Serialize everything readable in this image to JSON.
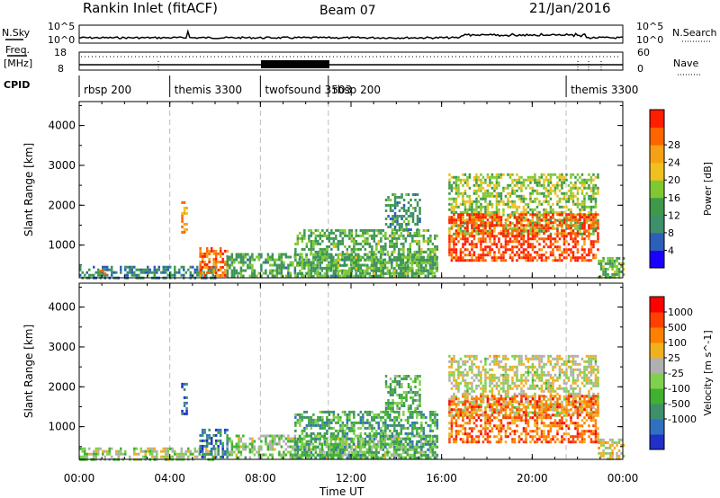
{
  "header": {
    "station": "Rankin Inlet (fitACF)",
    "beam": "Beam 07",
    "date": "21/Jan/2016"
  },
  "top_panel": {
    "left_label": "N.Sky",
    "right_label": "N.Search",
    "y_top": "10^5",
    "y_bottom": "10^0"
  },
  "freq_panel": {
    "left_label_1": "Freq.",
    "left_label_2": "[MHz]",
    "left_tick_top": "18",
    "left_tick_bottom": "8",
    "right_label": "Nave",
    "right_tick_top": "60",
    "right_tick_bottom": "0"
  },
  "cpid": {
    "label": "CPID",
    "segments": [
      {
        "name": "rbsp 200",
        "start_h": 0.0
      },
      {
        "name": "themis 3300",
        "start_h": 4.0
      },
      {
        "name": "twofsound 3503",
        "start_h": 8.0
      },
      {
        "name": "rbsp 200",
        "start_h": 11.0
      },
      {
        "name": "themis 3300",
        "start_h": 21.5
      }
    ]
  },
  "x_axis": {
    "title": "Time UT",
    "ticks": [
      "00:00",
      "04:00",
      "08:00",
      "12:00",
      "16:00",
      "20:00",
      "00:00"
    ],
    "range_hours": [
      0,
      24
    ]
  },
  "chart_data": [
    {
      "type": "heatmap",
      "ylabel": "Slant Range [km]",
      "yticks": [
        "1000",
        "2000",
        "3000",
        "4000"
      ],
      "ylim": [
        180,
        4600
      ],
      "colorbar_label": "Power [dB]",
      "colorbar_ticks": [
        "4",
        "8",
        "12",
        "16",
        "20",
        "24",
        "28"
      ],
      "colorbar_colors": [
        "#1a00ff",
        "#2c5fb8",
        "#3e8f6a",
        "#3e9a4a",
        "#7fc832",
        "#f0c020",
        "#f5a015",
        "#ff6400",
        "#ff1e00"
      ],
      "regions": [
        {
          "t0": 0.0,
          "t1": 6.0,
          "r0": 200,
          "r1": 480,
          "level": 0.25
        },
        {
          "t0": 0.9,
          "t1": 1.1,
          "r0": 260,
          "r1": 380,
          "level": 0.95
        },
        {
          "t0": 4.5,
          "t1": 4.75,
          "r0": 1300,
          "r1": 2100,
          "level": 0.75
        },
        {
          "t0": 5.3,
          "t1": 6.5,
          "r0": 250,
          "r1": 950,
          "level": 0.85
        },
        {
          "t0": 6.5,
          "t1": 15.8,
          "r0": 200,
          "r1": 800,
          "level": 0.35
        },
        {
          "t0": 9.5,
          "t1": 15.8,
          "r0": 200,
          "r1": 1400,
          "level": 0.4
        },
        {
          "t0": 13.5,
          "t1": 15.0,
          "r0": 1400,
          "r1": 2300,
          "level": 0.3
        },
        {
          "t0": 16.3,
          "t1": 22.9,
          "r0": 1300,
          "r1": 2800,
          "level": 0.5
        },
        {
          "t0": 16.3,
          "t1": 22.9,
          "r0": 600,
          "r1": 1800,
          "level": 0.95
        },
        {
          "t0": 22.9,
          "t1": 24.0,
          "r0": 200,
          "r1": 700,
          "level": 0.4
        }
      ]
    },
    {
      "type": "heatmap",
      "ylabel": "Slant Range [km]",
      "yticks": [
        "1000",
        "2000",
        "3000",
        "4000"
      ],
      "ylim": [
        180,
        4600
      ],
      "colorbar_label": "Velocity [m s^-1]",
      "colorbar_ticks": [
        "1000",
        "500",
        "100",
        "25",
        "-25",
        "-100",
        "-500",
        "-1000"
      ],
      "colorbar_colors": [
        "#2030c8",
        "#3070c0",
        "#3e8f6a",
        "#40b030",
        "#80d050",
        "#b0b0b0",
        "#f0b020",
        "#ff8000",
        "#ff4000",
        "#ff0000"
      ],
      "regions": [
        {
          "t0": 0.0,
          "t1": 6.0,
          "r0": 200,
          "r1": 480,
          "level": 0.5
        },
        {
          "t0": 4.5,
          "t1": 4.75,
          "r0": 1300,
          "r1": 2100,
          "level": 0.05
        },
        {
          "t0": 5.3,
          "t1": 6.5,
          "r0": 250,
          "r1": 950,
          "level": 0.15
        },
        {
          "t0": 6.5,
          "t1": 15.8,
          "r0": 200,
          "r1": 800,
          "level": 0.45
        },
        {
          "t0": 9.5,
          "t1": 15.8,
          "r0": 200,
          "r1": 1400,
          "level": 0.3
        },
        {
          "t0": 13.5,
          "t1": 15.0,
          "r0": 1400,
          "r1": 2300,
          "level": 0.35
        },
        {
          "t0": 16.3,
          "t1": 22.9,
          "r0": 1300,
          "r1": 2800,
          "level": 0.55
        },
        {
          "t0": 16.3,
          "t1": 22.9,
          "r0": 600,
          "r1": 1800,
          "level": 0.82
        },
        {
          "t0": 22.9,
          "t1": 24.0,
          "r0": 200,
          "r1": 700,
          "level": 0.6
        }
      ]
    }
  ]
}
